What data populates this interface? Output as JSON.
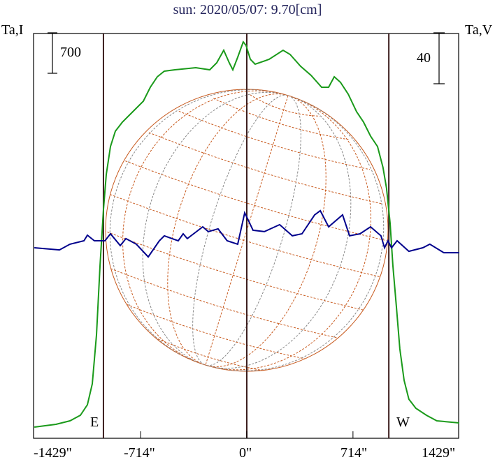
{
  "chart_data": {
    "type": "line",
    "title": "sun: 2020/05/07: 9.70[cm]",
    "ylabel_left": "Ta,I",
    "ylabel_right": "Ta,V",
    "scale_left": "700",
    "scale_right": "40",
    "xlim": [
      -1429,
      1429
    ],
    "xticks": [
      "-1429\"",
      "-714\"",
      "0\"",
      "714\"",
      "1429\""
    ],
    "xtick_values": [
      -1429,
      -714,
      0,
      714,
      1429
    ],
    "limb_labels": {
      "east": "E",
      "west": "W"
    },
    "limb_x": [
      -964,
      0,
      955
    ],
    "solar_radius_arcsec": 950,
    "colors": {
      "I": "#1a9a1a",
      "V": "#00008c",
      "grid": "#c85a1e",
      "lines": "#3c1e1e"
    },
    "series": [
      {
        "name": "I",
        "x": [
          -1429,
          -1283,
          -1189,
          -1119,
          -1072,
          -1039,
          -1011,
          -987,
          -964,
          -945,
          -917,
          -884,
          -837,
          -790,
          -743,
          -696,
          -649,
          -602,
          -555,
          -484,
          -343,
          -249,
          -202,
          -155,
          -118,
          -94,
          -61,
          -24,
          -5,
          24,
          56,
          150,
          244,
          291,
          362,
          432,
          503,
          550,
          588,
          630,
          682,
          738,
          785,
          832,
          879,
          916,
          940,
          964,
          982,
          1006,
          1029,
          1058,
          1090,
          1137,
          1208,
          1278,
          1429
        ],
        "y": [
          0,
          48,
          108,
          204,
          384,
          744,
          1584,
          2784,
          3744,
          4344,
          4824,
          5088,
          5244,
          5364,
          5484,
          5604,
          5844,
          6024,
          6120,
          6144,
          6180,
          6144,
          6264,
          6480,
          6264,
          6144,
          6360,
          6624,
          6564,
          6324,
          6240,
          6324,
          6480,
          6408,
          6204,
          6048,
          5844,
          5844,
          6024,
          5928,
          5724,
          5424,
          5244,
          5004,
          4824,
          4464,
          4104,
          3504,
          2784,
          2064,
          1344,
          804,
          480,
          324,
          204,
          108,
          72
        ]
      },
      {
        "name": "V",
        "x": [
          -1429,
          -1260,
          -1189,
          -1095,
          -1072,
          -1025,
          -954,
          -917,
          -851,
          -813,
          -743,
          -663,
          -588,
          -555,
          -461,
          -428,
          -400,
          -296,
          -259,
          -193,
          -132,
          -61,
          -14,
          9,
          42,
          118,
          221,
          306,
          371,
          456,
          494,
          550,
          644,
          691,
          761,
          832,
          902,
          926,
          949,
          973,
          1011,
          1090,
          1184,
          1231,
          1325,
          1429
        ],
        "y": [
          1.1,
          -0.6,
          3.9,
          6.6,
          11,
          6.6,
          6.6,
          12.1,
          2.8,
          8.3,
          3.9,
          -6.1,
          6.6,
          10.5,
          6.6,
          12.1,
          8.3,
          17.6,
          13.8,
          16,
          6.6,
          3.9,
          28.6,
          23.1,
          14.9,
          13.8,
          19.3,
          10.5,
          12.1,
          27,
          30.3,
          17.6,
          27,
          10.5,
          12.1,
          17.6,
          10.5,
          1.1,
          6.6,
          1.1,
          6.6,
          -1.7,
          1.1,
          3.9,
          -2.8,
          -2.8
        ]
      }
    ]
  }
}
